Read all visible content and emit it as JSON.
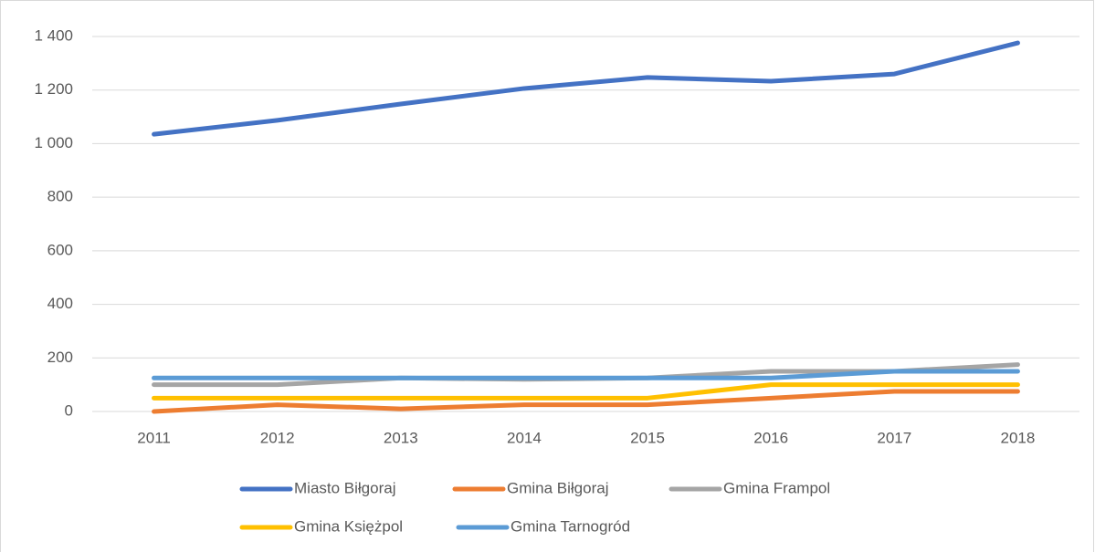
{
  "chart_data": {
    "type": "line",
    "categories": [
      "2011",
      "2012",
      "2013",
      "2014",
      "2015",
      "2016",
      "2017",
      "2018"
    ],
    "series": [
      {
        "name": "Miasto Biłgoraj",
        "color": "#4472c4",
        "values": [
          1035,
          1087,
          1148,
          1206,
          1247,
          1233,
          1260,
          1376
        ]
      },
      {
        "name": "Gmina Biłgoraj",
        "color": "#ed7d31",
        "values": [
          0,
          25,
          10,
          25,
          25,
          50,
          75,
          75
        ]
      },
      {
        "name": "Gmina Frampol",
        "color": "#a5a5a5",
        "values": [
          100,
          100,
          125,
          120,
          125,
          150,
          150,
          175
        ]
      },
      {
        "name": "Gmina Księżpol",
        "color": "#ffc000",
        "values": [
          50,
          50,
          50,
          50,
          50,
          100,
          100,
          100
        ]
      },
      {
        "name": "Gmina Tarnogród",
        "color": "#5b9bd5",
        "values": [
          125,
          125,
          125,
          125,
          125,
          125,
          150,
          150
        ]
      }
    ],
    "ylim": [
      0,
      1400
    ],
    "yticks": [
      0,
      200,
      400,
      600,
      800,
      {
        "value": 1000,
        "label": "1 000"
      },
      {
        "value": 1200,
        "label": "1 200"
      },
      {
        "value": 1400,
        "label": "1 400"
      }
    ],
    "grid": true,
    "legend": "bottom"
  }
}
